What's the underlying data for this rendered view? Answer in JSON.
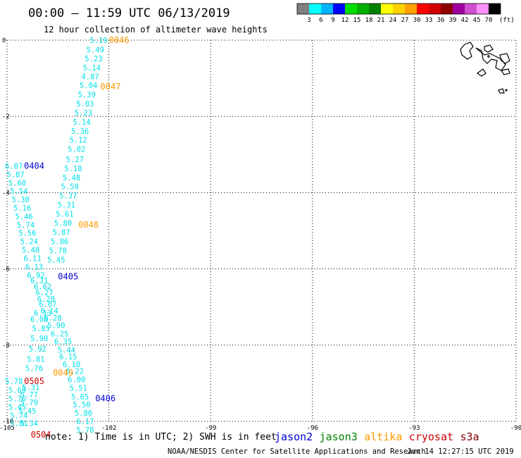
{
  "title": "00:00 – 11:59 UTC 06/13/2019",
  "subtitle": "12 hour collection of altimeter wave heights",
  "legend": {
    "unit": "(ft)",
    "labels": [
      "3",
      "6",
      "9",
      "12",
      "15",
      "18",
      "21",
      "24",
      "27",
      "30",
      "33",
      "36",
      "39",
      "42",
      "45",
      "70"
    ],
    "colors": [
      "#7f7f7f",
      "#00ffff",
      "#00b4ff",
      "#0000ff",
      "#00e000",
      "#00b000",
      "#008000",
      "#ffff00",
      "#ffd200",
      "#ffa000",
      "#ff0000",
      "#d00000",
      "#900000",
      "#a000a0",
      "#d050d0",
      "#ff90ff",
      "#000000"
    ]
  },
  "axes": {
    "lon_min": -105,
    "lon_max": -90,
    "lat_min": -10,
    "lat_max": 0,
    "x_ticks": [
      -105,
      -102,
      -99,
      -96,
      -93,
      -90
    ],
    "y_ticks": [
      0,
      -2,
      -4,
      -6,
      -8,
      -10
    ]
  },
  "wave_heights": [
    {
      "lon": -102.3,
      "lat": 0.0,
      "v": "5.19"
    },
    {
      "lon": -102.4,
      "lat": -0.25,
      "v": "5.49"
    },
    {
      "lon": -102.45,
      "lat": -0.48,
      "v": "5.23"
    },
    {
      "lon": -102.5,
      "lat": -0.72,
      "v": "5.14"
    },
    {
      "lon": -102.55,
      "lat": -0.95,
      "v": "4.87"
    },
    {
      "lon": -102.6,
      "lat": -1.18,
      "v": "5.04"
    },
    {
      "lon": -102.65,
      "lat": -1.42,
      "v": "5.39"
    },
    {
      "lon": -102.7,
      "lat": -1.66,
      "v": "5.03"
    },
    {
      "lon": -102.75,
      "lat": -1.9,
      "v": "5.23"
    },
    {
      "lon": -102.8,
      "lat": -2.14,
      "v": "5.14"
    },
    {
      "lon": -102.85,
      "lat": -2.38,
      "v": "5.36"
    },
    {
      "lon": -102.9,
      "lat": -2.62,
      "v": "5.12"
    },
    {
      "lon": -102.95,
      "lat": -2.86,
      "v": "5.02"
    },
    {
      "lon": -103.0,
      "lat": -3.12,
      "v": "5.27"
    },
    {
      "lon": -103.05,
      "lat": -3.36,
      "v": "5.18"
    },
    {
      "lon": -103.1,
      "lat": -3.6,
      "v": "5.48"
    },
    {
      "lon": -103.15,
      "lat": -3.84,
      "v": "5.59"
    },
    {
      "lon": -103.2,
      "lat": -4.08,
      "v": "5.37"
    },
    {
      "lon": -103.25,
      "lat": -4.32,
      "v": "5.31"
    },
    {
      "lon": -103.3,
      "lat": -4.56,
      "v": "5.61"
    },
    {
      "lon": -103.35,
      "lat": -4.8,
      "v": "5.80"
    },
    {
      "lon": -103.4,
      "lat": -5.04,
      "v": "5.87"
    },
    {
      "lon": -103.45,
      "lat": -5.28,
      "v": "5.86"
    },
    {
      "lon": -103.5,
      "lat": -5.52,
      "v": "5.78"
    },
    {
      "lon": -103.55,
      "lat": -5.76,
      "v": "5.45"
    },
    {
      "lon": -104.8,
      "lat": -3.3,
      "v": "6.07"
    },
    {
      "lon": -104.75,
      "lat": -3.52,
      "v": "5.87"
    },
    {
      "lon": -104.7,
      "lat": -3.74,
      "v": "5.60"
    },
    {
      "lon": -104.65,
      "lat": -3.96,
      "v": "5.54"
    },
    {
      "lon": -104.6,
      "lat": -4.18,
      "v": "5.30"
    },
    {
      "lon": -104.55,
      "lat": -4.4,
      "v": "5.16"
    },
    {
      "lon": -104.5,
      "lat": -4.62,
      "v": "5.46"
    },
    {
      "lon": -104.45,
      "lat": -4.84,
      "v": "5.74"
    },
    {
      "lon": -104.4,
      "lat": -5.06,
      "v": "5.56"
    },
    {
      "lon": -104.35,
      "lat": -5.28,
      "v": "5.24"
    },
    {
      "lon": -104.3,
      "lat": -5.5,
      "v": "5.48"
    },
    {
      "lon": -104.25,
      "lat": -5.72,
      "v": "6.11"
    },
    {
      "lon": -104.2,
      "lat": -5.94,
      "v": "6.13"
    },
    {
      "lon": -104.15,
      "lat": -6.16,
      "v": "6.92"
    },
    {
      "lon": -104.05,
      "lat": -6.3,
      "v": "6.31"
    },
    {
      "lon": -103.95,
      "lat": -6.46,
      "v": "6.62"
    },
    {
      "lon": -103.9,
      "lat": -6.62,
      "v": "6.27"
    },
    {
      "lon": -103.85,
      "lat": -6.78,
      "v": "6.20"
    },
    {
      "lon": -103.8,
      "lat": -6.92,
      "v": "6.07"
    },
    {
      "lon": -103.75,
      "lat": -7.1,
      "v": "6.14"
    },
    {
      "lon": -103.95,
      "lat": -7.15,
      "v": "6.13"
    },
    {
      "lon": -103.65,
      "lat": -7.28,
      "v": "6.28"
    },
    {
      "lon": -104.05,
      "lat": -7.32,
      "v": "6.08"
    },
    {
      "lon": -103.55,
      "lat": -7.48,
      "v": "5.90"
    },
    {
      "lon": -104.0,
      "lat": -7.56,
      "v": "5.85"
    },
    {
      "lon": -103.45,
      "lat": -7.7,
      "v": "6.25"
    },
    {
      "lon": -104.05,
      "lat": -7.82,
      "v": "5.90"
    },
    {
      "lon": -103.35,
      "lat": -7.9,
      "v": "6.35"
    },
    {
      "lon": -104.1,
      "lat": -8.1,
      "v": "5.92"
    },
    {
      "lon": -103.25,
      "lat": -8.12,
      "v": "5.44"
    },
    {
      "lon": -103.2,
      "lat": -8.3,
      "v": "6.15"
    },
    {
      "lon": -104.15,
      "lat": -8.36,
      "v": "5.81"
    },
    {
      "lon": -103.1,
      "lat": -8.5,
      "v": "6.10"
    },
    {
      "lon": -104.2,
      "lat": -8.6,
      "v": "5.76"
    },
    {
      "lon": -103.0,
      "lat": -8.68,
      "v": "6.22"
    },
    {
      "lon": -102.95,
      "lat": -8.9,
      "v": "6.00"
    },
    {
      "lon": -104.8,
      "lat": -8.95,
      "v": "5.78"
    },
    {
      "lon": -102.9,
      "lat": -9.12,
      "v": "5.51"
    },
    {
      "lon": -104.3,
      "lat": -9.1,
      "v": "5.31"
    },
    {
      "lon": -104.7,
      "lat": -9.18,
      "v": "5.69"
    },
    {
      "lon": -102.85,
      "lat": -9.35,
      "v": "5.65"
    },
    {
      "lon": -104.35,
      "lat": -9.3,
      "v": "5.77"
    },
    {
      "lon": -104.7,
      "lat": -9.4,
      "v": "5.76"
    },
    {
      "lon": -102.8,
      "lat": -9.56,
      "v": "5.50"
    },
    {
      "lon": -104.35,
      "lat": -9.5,
      "v": "5.79"
    },
    {
      "lon": -104.7,
      "lat": -9.62,
      "v": "5.45"
    },
    {
      "lon": -102.75,
      "lat": -9.78,
      "v": "5.80"
    },
    {
      "lon": -104.4,
      "lat": -9.72,
      "v": "5.45"
    },
    {
      "lon": -104.65,
      "lat": -9.84,
      "v": "5.74"
    },
    {
      "lon": -102.7,
      "lat": -10.0,
      "v": "6.17"
    },
    {
      "lon": -104.65,
      "lat": -10.05,
      "v": "5.81"
    },
    {
      "lon": -104.35,
      "lat": -10.05,
      "v": "5.34"
    },
    {
      "lon": -102.7,
      "lat": -10.22,
      "v": "5.78"
    }
  ],
  "pass_labels": [
    {
      "lon": -101.7,
      "lat": 0.0,
      "text": "0046",
      "sat": "altika"
    },
    {
      "lon": -101.95,
      "lat": -1.22,
      "text": "0047",
      "sat": "altika"
    },
    {
      "lon": -104.2,
      "lat": -3.3,
      "text": "0404",
      "sat": "jason2"
    },
    {
      "lon": -102.6,
      "lat": -4.84,
      "text": "0048",
      "sat": "altika"
    },
    {
      "lon": -103.2,
      "lat": -6.2,
      "text": "0405",
      "sat": "jason2"
    },
    {
      "lon": -103.35,
      "lat": -8.72,
      "text": "0049",
      "sat": "altika"
    },
    {
      "lon": -104.2,
      "lat": -8.95,
      "text": "0505",
      "sat": "cryosat"
    },
    {
      "lon": -102.1,
      "lat": -9.4,
      "text": "0406",
      "sat": "jason2"
    },
    {
      "lon": -104.0,
      "lat": -10.35,
      "text": "0504",
      "sat": "cryosat"
    }
  ],
  "note": "note: 1) Time is in UTC; 2) SWH is in feet",
  "satellites": [
    {
      "name": "jason2",
      "color": "#0000d0"
    },
    {
      "name": "jason3",
      "color": "#008000"
    },
    {
      "name": "altika",
      "color": "#ff9900"
    },
    {
      "name": "cryosat",
      "color": "#cc0000"
    },
    {
      "name": "s3a",
      "color": "#800000"
    }
  ],
  "footer_left": "NOAA/NESDIS Center for Satellite Applications and Research",
  "footer_right": "Jun 14 12:27:15 UTC 2019"
}
